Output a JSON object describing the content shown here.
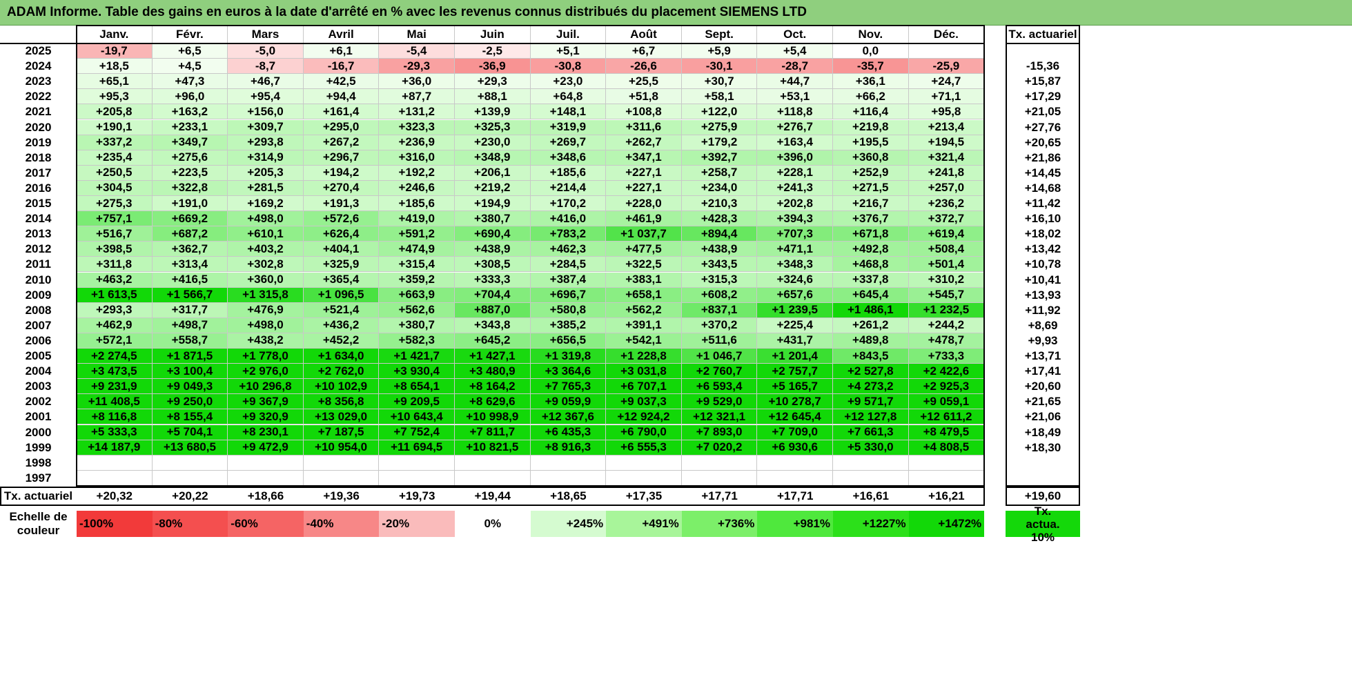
{
  "title": "ADAM Informe. Table des gains en euros à la date d'arrêté en % avec les revenus connus distribués du placement SIEMENS LTD",
  "months": [
    "Janv.",
    "Févr.",
    "Mars",
    "Avril",
    "Mai",
    "Juin",
    "Juil.",
    "Août",
    "Sept.",
    "Oct.",
    "Nov.",
    "Déc."
  ],
  "rate_header": "Tx. actuariel",
  "rows": [
    {
      "year": "2025",
      "values": [
        "-19,7",
        "+6,5",
        "-5,0",
        "+6,1",
        "-5,4",
        "-2,5",
        "+5,1",
        "+6,7",
        "+5,9",
        "+5,4",
        "0,0",
        ""
      ],
      "rate": ""
    },
    {
      "year": "2024",
      "values": [
        "+18,5",
        "+4,5",
        "-8,7",
        "-16,7",
        "-29,3",
        "-36,9",
        "-30,8",
        "-26,6",
        "-30,1",
        "-28,7",
        "-35,7",
        "-25,9"
      ],
      "rate": "-15,36"
    },
    {
      "year": "2023",
      "values": [
        "+65,1",
        "+47,3",
        "+46,7",
        "+42,5",
        "+36,0",
        "+29,3",
        "+23,0",
        "+25,5",
        "+30,7",
        "+44,7",
        "+36,1",
        "+24,7"
      ],
      "rate": "+15,87"
    },
    {
      "year": "2022",
      "values": [
        "+95,3",
        "+96,0",
        "+95,4",
        "+94,4",
        "+87,7",
        "+88,1",
        "+64,8",
        "+51,8",
        "+58,1",
        "+53,1",
        "+66,2",
        "+71,1"
      ],
      "rate": "+17,29"
    },
    {
      "year": "2021",
      "values": [
        "+205,8",
        "+163,2",
        "+156,0",
        "+161,4",
        "+131,2",
        "+139,9",
        "+148,1",
        "+108,8",
        "+122,0",
        "+118,8",
        "+116,4",
        "+95,8"
      ],
      "rate": "+21,05"
    },
    {
      "year": "2020",
      "values": [
        "+190,1",
        "+233,1",
        "+309,7",
        "+295,0",
        "+323,3",
        "+325,3",
        "+319,9",
        "+311,6",
        "+275,9",
        "+276,7",
        "+219,8",
        "+213,4"
      ],
      "rate": "+27,76"
    },
    {
      "year": "2019",
      "values": [
        "+337,2",
        "+349,7",
        "+293,8",
        "+267,2",
        "+236,9",
        "+230,0",
        "+269,7",
        "+262,7",
        "+179,2",
        "+163,4",
        "+195,5",
        "+194,5"
      ],
      "rate": "+20,65"
    },
    {
      "year": "2018",
      "values": [
        "+235,4",
        "+275,6",
        "+314,9",
        "+296,7",
        "+316,0",
        "+348,9",
        "+348,6",
        "+347,1",
        "+392,7",
        "+396,0",
        "+360,8",
        "+321,4"
      ],
      "rate": "+21,86"
    },
    {
      "year": "2017",
      "values": [
        "+250,5",
        "+223,5",
        "+205,3",
        "+194,2",
        "+192,2",
        "+206,1",
        "+185,6",
        "+227,1",
        "+258,7",
        "+228,1",
        "+252,9",
        "+241,8"
      ],
      "rate": "+14,45"
    },
    {
      "year": "2016",
      "values": [
        "+304,5",
        "+322,8",
        "+281,5",
        "+270,4",
        "+246,6",
        "+219,2",
        "+214,4",
        "+227,1",
        "+234,0",
        "+241,3",
        "+271,5",
        "+257,0"
      ],
      "rate": "+14,68"
    },
    {
      "year": "2015",
      "values": [
        "+275,3",
        "+191,0",
        "+169,2",
        "+191,3",
        "+185,6",
        "+194,9",
        "+170,2",
        "+228,0",
        "+210,3",
        "+202,8",
        "+216,7",
        "+236,2"
      ],
      "rate": "+11,42"
    },
    {
      "year": "2014",
      "values": [
        "+757,1",
        "+669,2",
        "+498,0",
        "+572,6",
        "+419,0",
        "+380,7",
        "+416,0",
        "+461,9",
        "+428,3",
        "+394,3",
        "+376,7",
        "+372,7"
      ],
      "rate": "+16,10"
    },
    {
      "year": "2013",
      "values": [
        "+516,7",
        "+687,2",
        "+610,1",
        "+626,4",
        "+591,2",
        "+690,4",
        "+783,2",
        "+1 037,7",
        "+894,4",
        "+707,3",
        "+671,8",
        "+619,4"
      ],
      "rate": "+18,02"
    },
    {
      "year": "2012",
      "values": [
        "+398,5",
        "+362,7",
        "+403,2",
        "+404,1",
        "+474,9",
        "+438,9",
        "+462,3",
        "+477,5",
        "+438,9",
        "+471,1",
        "+492,8",
        "+508,4"
      ],
      "rate": "+13,42"
    },
    {
      "year": "2011",
      "values": [
        "+311,8",
        "+313,4",
        "+302,8",
        "+325,9",
        "+315,4",
        "+308,5",
        "+284,5",
        "+322,5",
        "+343,5",
        "+348,3",
        "+468,8",
        "+501,4"
      ],
      "rate": "+10,78"
    },
    {
      "year": "2010",
      "values": [
        "+463,2",
        "+416,5",
        "+360,0",
        "+365,4",
        "+359,2",
        "+333,3",
        "+387,4",
        "+383,1",
        "+315,3",
        "+324,6",
        "+337,8",
        "+310,2"
      ],
      "rate": "+10,41"
    },
    {
      "year": "2009",
      "values": [
        "+1 613,5",
        "+1 566,7",
        "+1 315,8",
        "+1 096,5",
        "+663,9",
        "+704,4",
        "+696,7",
        "+658,1",
        "+608,2",
        "+657,6",
        "+645,4",
        "+545,7"
      ],
      "rate": "+13,93"
    },
    {
      "year": "2008",
      "values": [
        "+293,3",
        "+317,7",
        "+476,9",
        "+521,4",
        "+562,6",
        "+887,0",
        "+580,8",
        "+562,2",
        "+837,1",
        "+1 239,5",
        "+1 486,1",
        "+1 232,5"
      ],
      "rate": "+11,92"
    },
    {
      "year": "2007",
      "values": [
        "+462,9",
        "+498,7",
        "+498,0",
        "+436,2",
        "+380,7",
        "+343,8",
        "+385,2",
        "+391,1",
        "+370,2",
        "+225,4",
        "+261,2",
        "+244,2"
      ],
      "rate": "+8,69"
    },
    {
      "year": "2006",
      "values": [
        "+572,1",
        "+558,7",
        "+438,2",
        "+452,2",
        "+582,3",
        "+645,2",
        "+656,5",
        "+542,1",
        "+511,6",
        "+431,7",
        "+489,8",
        "+478,7"
      ],
      "rate": "+9,93"
    },
    {
      "year": "2005",
      "values": [
        "+2 274,5",
        "+1 871,5",
        "+1 778,0",
        "+1 634,0",
        "+1 421,7",
        "+1 427,1",
        "+1 319,8",
        "+1 228,8",
        "+1 046,7",
        "+1 201,4",
        "+843,5",
        "+733,3"
      ],
      "rate": "+13,71"
    },
    {
      "year": "2004",
      "values": [
        "+3 473,5",
        "+3 100,4",
        "+2 976,0",
        "+2 762,0",
        "+3 930,4",
        "+3 480,9",
        "+3 364,6",
        "+3 031,8",
        "+2 760,7",
        "+2 757,7",
        "+2 527,8",
        "+2 422,6"
      ],
      "rate": "+17,41"
    },
    {
      "year": "2003",
      "values": [
        "+9 231,9",
        "+9 049,3",
        "+10 296,8",
        "+10 102,9",
        "+8 654,1",
        "+8 164,2",
        "+7 765,3",
        "+6 707,1",
        "+6 593,4",
        "+5 165,7",
        "+4 273,2",
        "+2 925,3"
      ],
      "rate": "+20,60"
    },
    {
      "year": "2002",
      "values": [
        "+11 408,5",
        "+9 250,0",
        "+9 367,9",
        "+8 356,8",
        "+9 209,5",
        "+8 629,6",
        "+9 059,9",
        "+9 037,3",
        "+9 529,0",
        "+10 278,7",
        "+9 571,7",
        "+9 059,1"
      ],
      "rate": "+21,65"
    },
    {
      "year": "2001",
      "values": [
        "+8 116,8",
        "+8 155,4",
        "+9 320,9",
        "+13 029,0",
        "+10 643,4",
        "+10 998,9",
        "+12 367,6",
        "+12 924,2",
        "+12 321,1",
        "+12 645,4",
        "+12 127,8",
        "+12 611,2"
      ],
      "rate": "+21,06"
    },
    {
      "year": "2000",
      "values": [
        "+5 333,3",
        "+5 704,1",
        "+8 230,1",
        "+7 187,5",
        "+7 752,4",
        "+7 811,7",
        "+6 435,3",
        "+6 790,0",
        "+7 893,0",
        "+7 709,0",
        "+7 661,3",
        "+8 479,5"
      ],
      "rate": "+18,49"
    },
    {
      "year": "1999",
      "values": [
        "+14 187,9",
        "+13 680,5",
        "+9 472,9",
        "+10 954,0",
        "+11 694,5",
        "+10 821,5",
        "+8 916,3",
        "+6 555,3",
        "+7 020,2",
        "+6 930,6",
        "+5 330,0",
        "+4 808,5"
      ],
      "rate": "+18,30"
    },
    {
      "year": "1998",
      "values": [
        "",
        "",
        "",
        "",
        "",
        "",
        "",
        "",
        "",
        "",
        "",
        ""
      ],
      "rate": ""
    },
    {
      "year": "1997",
      "values": [
        "",
        "",
        "",
        "",
        "",
        "",
        "",
        "",
        "",
        "",
        "",
        ""
      ],
      "rate": ""
    }
  ],
  "footer": {
    "label": "Tx. actuariel",
    "values": [
      "+20,32",
      "+20,22",
      "+18,66",
      "+19,36",
      "+19,73",
      "+19,44",
      "+18,65",
      "+17,35",
      "+17,71",
      "+17,71",
      "+16,61",
      "+16,21"
    ],
    "overall": "+19,60"
  },
  "scale": {
    "label": "Echelle de couleur",
    "steps": [
      {
        "label": "-100%",
        "color": "#f23a3a"
      },
      {
        "label": "-80%",
        "color": "#f44f4f"
      },
      {
        "label": "-60%",
        "color": "#f56464"
      },
      {
        "label": "-40%",
        "color": "#f78787"
      },
      {
        "label": "-20%",
        "color": "#fabbbb"
      },
      {
        "label": "0%",
        "color": "#ffffff"
      },
      {
        "label": "+245%",
        "color": "#d5fbd0"
      },
      {
        "label": "+491%",
        "color": "#a8f59a"
      },
      {
        "label": "+736%",
        "color": "#7cef69"
      },
      {
        "label": "+981%",
        "color": "#4fe83d"
      },
      {
        "label": "+1227%",
        "color": "#2ce01a"
      },
      {
        "label": "+1472%",
        "color": "#12d808"
      }
    ],
    "rate_label": "Tx. actua. 10%",
    "rate_color": "#14d80a"
  }
}
